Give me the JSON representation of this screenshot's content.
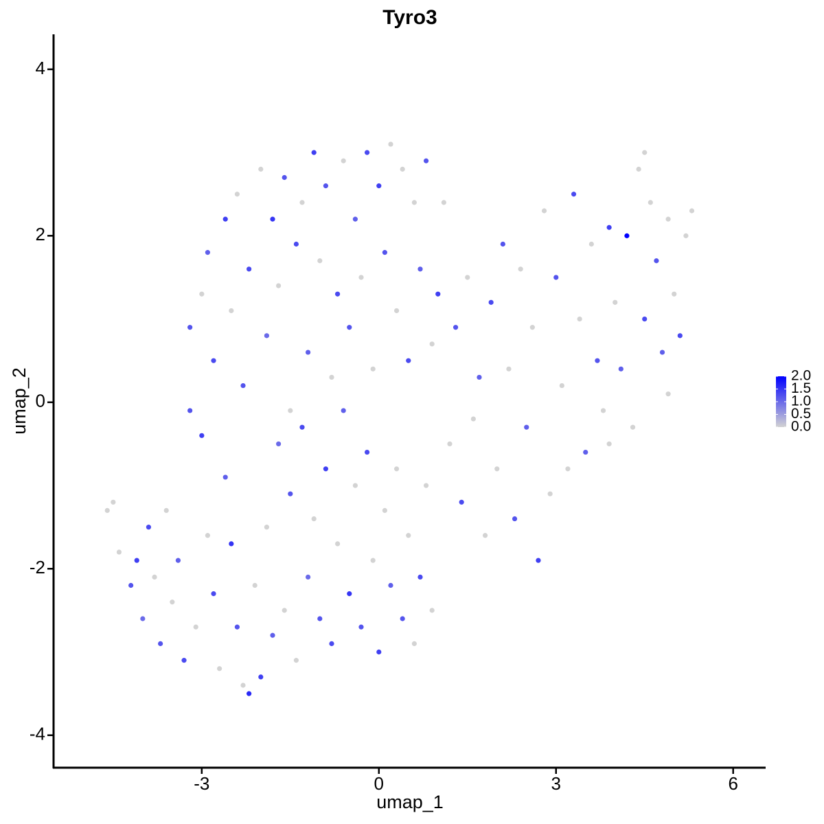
{
  "chart_data": {
    "type": "scatter",
    "title": "Tyro3",
    "x_label": "umap_1",
    "y_label": "umap_2",
    "xlim": [
      -5.51,
      6.55
    ],
    "ylim": [
      -4.39,
      4.42
    ],
    "xticks": [
      -3,
      0,
      3,
      6
    ],
    "yticks": [
      -4,
      -2,
      0,
      2,
      4
    ],
    "grid": false,
    "low_color": "#d3d3d3",
    "high_color": "#0000ff",
    "color_lim": [
      0,
      2
    ],
    "color_ticks": [
      {
        "value": 0,
        "label": "0.0"
      },
      {
        "value": 0.5,
        "label": "0.5"
      },
      {
        "value": 1,
        "label": "1.0"
      },
      {
        "value": 1.5,
        "label": "1.5"
      },
      {
        "value": 2,
        "label": "2.0"
      }
    ],
    "x": [
      -4.6,
      -4.5,
      -4.4,
      -4.2,
      -4.1,
      -4.0,
      -3.9,
      -3.8,
      -3.7,
      -3.6,
      -3.5,
      -3.4,
      -3.3,
      -3.2,
      -3.1,
      -3.0,
      -2.9,
      -2.8,
      -2.7,
      -2.6,
      -2.5,
      -2.4,
      -2.3,
      -2.2,
      -2.1,
      -2.0,
      -1.9,
      -1.8,
      -1.7,
      -1.6,
      -1.5,
      -1.4,
      -1.3,
      -1.2,
      -1.1,
      -1.0,
      -0.9,
      -0.8,
      -0.7,
      -0.6,
      -0.5,
      -0.4,
      -0.3,
      -0.2,
      -0.1,
      0.0,
      0.1,
      0.2,
      0.3,
      0.4,
      0.5,
      0.6,
      0.7,
      0.8,
      0.9,
      -3.2,
      -3.0,
      -2.9,
      -2.8,
      -2.6,
      -2.5,
      -2.4,
      -2.3,
      -2.2,
      -2.0,
      -1.9,
      -1.8,
      -1.7,
      -1.6,
      -1.5,
      -1.4,
      -1.3,
      -1.2,
      -1.1,
      -1.0,
      -0.9,
      -0.8,
      -0.7,
      -0.6,
      -0.5,
      -0.4,
      -0.3,
      -0.2,
      -0.1,
      0.0,
      0.1,
      0.2,
      0.3,
      0.4,
      0.5,
      0.6,
      0.7,
      0.8,
      0.9,
      1.0,
      1.1,
      1.2,
      1.3,
      1.4,
      1.5,
      1.6,
      1.7,
      1.8,
      1.9,
      2.0,
      2.1,
      2.2,
      2.3,
      2.4,
      2.5,
      2.6,
      2.7,
      2.8,
      2.9,
      3.0,
      3.1,
      3.2,
      3.3,
      3.4,
      3.5,
      3.6,
      3.7,
      3.8,
      3.9,
      4.0,
      4.1,
      4.2,
      4.3,
      4.4,
      4.5,
      4.6,
      4.7,
      4.8,
      4.9,
      5.0,
      5.1,
      5.2,
      5.3,
      4.5,
      4.9,
      3.9
    ],
    "y": [
      -1.3,
      -1.2,
      -1.8,
      -2.2,
      -1.9,
      -2.6,
      -1.5,
      -2.1,
      -2.9,
      -1.3,
      -2.4,
      -1.9,
      -3.1,
      -0.1,
      -2.7,
      -0.4,
      -1.6,
      -2.3,
      -3.2,
      -0.9,
      -1.7,
      -2.7,
      -3.4,
      -3.5,
      -2.2,
      -3.3,
      -1.5,
      -2.8,
      -0.5,
      -2.5,
      -1.1,
      -3.1,
      -0.3,
      -2.1,
      -1.4,
      -2.6,
      -0.8,
      -2.9,
      -1.7,
      -0.1,
      -2.3,
      -1.0,
      -2.7,
      -0.6,
      -1.9,
      -3.0,
      -1.3,
      -2.2,
      -0.8,
      -2.6,
      -1.6,
      -2.9,
      -2.1,
      -1.0,
      -2.5,
      0.9,
      1.3,
      1.8,
      0.5,
      2.2,
      1.1,
      2.5,
      0.2,
      1.6,
      2.8,
      0.8,
      2.2,
      1.4,
      2.7,
      -0.1,
      1.9,
      2.4,
      0.6,
      3.0,
      1.7,
      2.6,
      0.3,
      1.3,
      2.9,
      0.9,
      2.2,
      1.5,
      3.0,
      0.4,
      2.6,
      1.8,
      3.1,
      1.1,
      2.8,
      0.5,
      2.4,
      1.6,
      2.9,
      0.7,
      1.3,
      2.4,
      -0.5,
      0.9,
      -1.2,
      1.5,
      -0.2,
      0.3,
      -1.6,
      1.2,
      -0.8,
      1.9,
      0.4,
      -1.4,
      1.6,
      -0.3,
      0.9,
      -1.9,
      2.3,
      -1.1,
      1.5,
      0.2,
      -0.8,
      2.5,
      1.0,
      -0.6,
      1.9,
      0.5,
      -0.1,
      2.1,
      1.2,
      0.4,
      2.0,
      -0.3,
      2.8,
      1.0,
      2.4,
      1.7,
      0.6,
      2.2,
      1.3,
      0.8,
      2.0,
      2.3,
      3.0,
      0.1,
      -0.5
    ],
    "values": [
      0,
      0,
      0,
      1.2,
      1.4,
      1.0,
      1.3,
      0,
      1.2,
      0,
      0,
      1.1,
      1.3,
      1.2,
      0,
      1.4,
      0,
      1.3,
      0,
      1.1,
      1.5,
      1.2,
      0,
      1.6,
      0,
      1.4,
      0,
      1.1,
      1.0,
      0,
      1.2,
      0,
      1.3,
      1.0,
      0,
      1.2,
      1.4,
      1.3,
      0,
      1.1,
      1.5,
      0,
      1.2,
      1.3,
      0,
      1.4,
      0,
      1.1,
      0,
      1.2,
      0,
      0,
      1.3,
      0,
      0,
      1.2,
      0,
      1.1,
      1.3,
      1.4,
      0,
      0,
      1.2,
      1.3,
      0,
      1.0,
      1.5,
      0,
      1.2,
      0,
      1.3,
      0,
      1.1,
      1.4,
      0,
      1.2,
      0,
      1.3,
      0,
      1.2,
      1.1,
      0,
      1.3,
      0,
      1.4,
      1.2,
      0,
      0,
      0,
      1.3,
      0,
      1.1,
      1.2,
      0,
      1.4,
      0,
      0,
      1.2,
      1.3,
      0,
      0,
      1.1,
      0,
      1.3,
      0,
      1.2,
      0,
      1.2,
      0,
      1.1,
      0,
      1.4,
      0,
      0,
      1.2,
      0,
      0,
      1.3,
      0,
      1.1,
      0,
      1.2,
      0,
      1.4,
      0,
      1.1,
      2.0,
      0,
      0,
      1.3,
      0,
      1.2,
      1.1,
      0,
      0,
      1.3,
      0,
      0,
      0,
      0,
      0
    ]
  }
}
